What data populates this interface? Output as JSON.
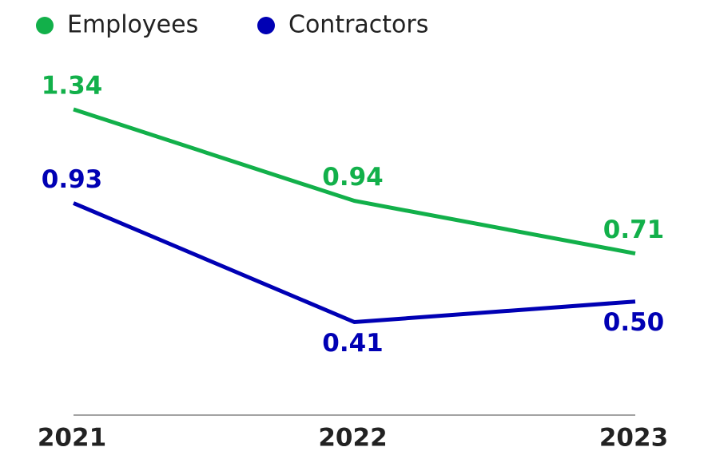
{
  "chart_data": {
    "type": "line",
    "categories": [
      "2021",
      "2022",
      "2023"
    ],
    "series": [
      {
        "name": "Employees",
        "color": "#12b04a",
        "values": [
          1.34,
          0.94,
          0.71
        ],
        "value_labels": [
          "1.34",
          "0.94",
          "0.71"
        ]
      },
      {
        "name": "Contractors",
        "color": "#0000b4",
        "values": [
          0.93,
          0.41,
          0.5
        ],
        "value_labels": [
          "0.93",
          "0.41",
          "0.50"
        ]
      }
    ]
  }
}
